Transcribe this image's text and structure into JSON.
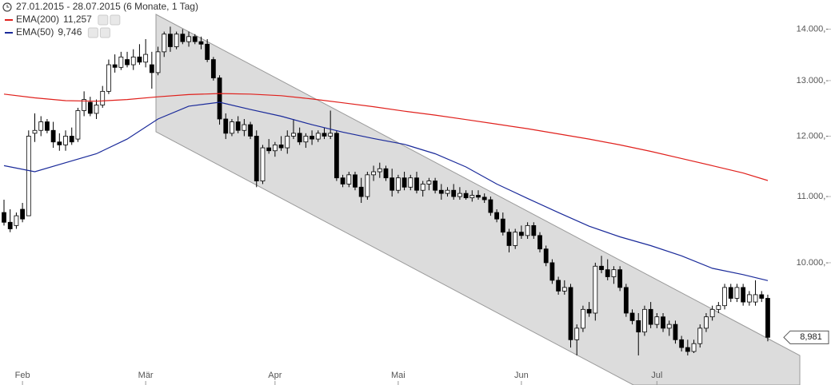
{
  "chart_data": {
    "type": "candlestick",
    "title": "27.01.2015 - 28.07.2015 (6 Monate, 1 Tag)",
    "log_scale": true,
    "grid": false,
    "ylim": [
      8600,
      14600
    ],
    "yticks": [
      {
        "value": 10000,
        "label": "10.000,-"
      },
      {
        "value": 11000,
        "label": "11.000,-"
      },
      {
        "value": 12000,
        "label": "12.000,-"
      },
      {
        "value": 13000,
        "label": "13.000,-"
      },
      {
        "value": 14000,
        "label": "14.000,-"
      }
    ],
    "xlim": [
      -0.65,
      129.2
    ],
    "xticks": [
      {
        "value": 3,
        "label": "Feb"
      },
      {
        "value": 23,
        "label": "Mär"
      },
      {
        "value": 44,
        "label": "Apr"
      },
      {
        "value": 64,
        "label": "Mai"
      },
      {
        "value": 84,
        "label": "Jun"
      },
      {
        "value": 106,
        "label": "Jul"
      }
    ],
    "up_color": "#ffffff",
    "down_color": "#000000",
    "open": [
      10750,
      10600,
      10550,
      10800,
      10700,
      12050,
      12100,
      12250,
      12100,
      11900,
      11850,
      12000,
      11950,
      12450,
      12600,
      12400,
      12550,
      12800,
      13300,
      13250,
      13400,
      13300,
      13450,
      13350,
      13300,
      13150,
      13550,
      13900,
      13650,
      13900,
      13750,
      13850,
      13750,
      13700,
      13400,
      13050,
      12300,
      12050,
      12250,
      12100,
      12200,
      12000,
      11250,
      11800,
      11750,
      11850,
      11800,
      12000,
      12050,
      11900,
      12000,
      11950,
      12050,
      12000,
      12050,
      11300,
      11200,
      11350,
      11150,
      11000,
      11350,
      11400,
      11450,
      11300,
      11100,
      11300,
      11150,
      11300,
      11100,
      11200,
      11250,
      11100,
      11050,
      11100,
      11000,
      11050,
      10980,
      11020,
      10990,
      10950,
      10750,
      10650,
      10450,
      10250,
      10450,
      10400,
      10550,
      10400,
      10200,
      10000,
      9750,
      9600,
      9650,
      8950,
      9100,
      9350,
      9300,
      9950,
      9900,
      9800,
      9900,
      9650,
      9300,
      9200,
      9050,
      9350,
      9150,
      9250,
      9100,
      9150,
      8950,
      8850,
      8800,
      8900,
      9100,
      9250,
      9350,
      9400,
      9650,
      9500,
      9650,
      9450,
      9450,
      9550,
      9500
    ],
    "high": [
      10950,
      10800,
      10750,
      10900,
      12100,
      12400,
      12350,
      12300,
      12250,
      12050,
      12100,
      12150,
      12500,
      12800,
      12700,
      12650,
      12900,
      13400,
      13500,
      13550,
      13550,
      13600,
      13700,
      13800,
      13550,
      13650,
      13950,
      14050,
      13950,
      14000,
      13950,
      13900,
      13850,
      13800,
      13450,
      13100,
      12400,
      12300,
      12350,
      12300,
      12250,
      12100,
      11850,
      11950,
      11900,
      12000,
      12100,
      12300,
      12150,
      12050,
      12100,
      12100,
      12150,
      12450,
      12100,
      11350,
      11400,
      11400,
      11300,
      11400,
      11500,
      11550,
      11500,
      11450,
      11350,
      11400,
      11350,
      11400,
      11250,
      11300,
      11300,
      11200,
      11150,
      11200,
      11150,
      11100,
      11100,
      11100,
      11050,
      11000,
      10800,
      10750,
      10500,
      10500,
      10550,
      10600,
      10600,
      10450,
      10250,
      10050,
      9800,
      9750,
      9700,
      9150,
      9400,
      9450,
      10000,
      10100,
      10050,
      9950,
      9950,
      9700,
      9350,
      9300,
      9400,
      9450,
      9300,
      9300,
      9200,
      9200,
      9000,
      8950,
      8950,
      9150,
      9300,
      9400,
      9450,
      9700,
      9700,
      9700,
      9700,
      9600,
      9750,
      9600,
      9550
    ],
    "low": [
      10550,
      10450,
      10500,
      10600,
      10700,
      11900,
      12000,
      12050,
      11800,
      11750,
      11750,
      11850,
      11900,
      12350,
      12350,
      12300,
      12500,
      12750,
      13150,
      13200,
      13250,
      13200,
      13300,
      13250,
      12850,
      13100,
      13450,
      13550,
      13600,
      13700,
      13650,
      13700,
      13600,
      13350,
      13000,
      12200,
      11950,
      12000,
      12050,
      12000,
      11950,
      11150,
      11200,
      11700,
      11650,
      11750,
      11700,
      11950,
      11850,
      11800,
      11850,
      11900,
      11950,
      11950,
      11250,
      11150,
      11150,
      11100,
      10900,
      10950,
      11250,
      11300,
      11250,
      11000,
      11050,
      11100,
      11100,
      11050,
      11000,
      11100,
      11050,
      10950,
      11000,
      10950,
      10950,
      10950,
      10920,
      10950,
      10900,
      10700,
      10600,
      10400,
      10150,
      10200,
      10350,
      10350,
      10350,
      10150,
      9950,
      9700,
      9550,
      9550,
      8850,
      8750,
      9050,
      9250,
      9200,
      9850,
      9750,
      9700,
      9600,
      9250,
      9150,
      8750,
      9000,
      9100,
      9100,
      9050,
      9000,
      8900,
      8800,
      8750,
      8780,
      8850,
      9050,
      9200,
      9300,
      9350,
      9450,
      9450,
      9400,
      9400,
      9400,
      9450,
      8930
    ],
    "close": [
      10600,
      10500,
      10700,
      10650,
      12000,
      12100,
      12250,
      12100,
      11900,
      11850,
      12000,
      11900,
      12450,
      12650,
      12400,
      12550,
      12800,
      13300,
      13250,
      13450,
      13300,
      13450,
      13350,
      13500,
      13150,
      13550,
      13900,
      13650,
      13900,
      13750,
      13850,
      13750,
      13700,
      13400,
      13050,
      12300,
      12050,
      12250,
      12100,
      12200,
      12000,
      11250,
      11800,
      11750,
      11850,
      11800,
      12000,
      12050,
      11900,
      12000,
      11950,
      12050,
      12000,
      12050,
      11300,
      11200,
      11350,
      11150,
      11000,
      11350,
      11400,
      11450,
      11300,
      11100,
      11300,
      11150,
      11300,
      11100,
      11200,
      11250,
      11100,
      11050,
      11100,
      11000,
      11050,
      10980,
      11020,
      10990,
      10950,
      10750,
      10650,
      10450,
      10250,
      10450,
      10400,
      10550,
      10400,
      10200,
      10000,
      9750,
      9600,
      9650,
      8950,
      9100,
      9350,
      9300,
      9950,
      9900,
      9800,
      9900,
      9650,
      9300,
      9200,
      9050,
      9350,
      9150,
      9250,
      9100,
      9150,
      8950,
      8850,
      8800,
      8900,
      9100,
      9250,
      9350,
      9400,
      9650,
      9500,
      9650,
      9450,
      9550,
      9550,
      9500,
      8981
    ],
    "close_label": "8,981",
    "series": [
      {
        "name": "EMA(200)",
        "color": "#e0201c",
        "value_label": "11,257",
        "x": [
          0,
          5,
          10,
          15,
          20,
          25,
          30,
          35,
          40,
          45,
          50,
          55,
          60,
          65,
          70,
          75,
          80,
          85,
          90,
          95,
          100,
          105,
          110,
          115,
          120,
          124
        ],
        "values": [
          12750,
          12680,
          12630,
          12620,
          12650,
          12700,
          12740,
          12760,
          12750,
          12720,
          12660,
          12590,
          12520,
          12440,
          12370,
          12290,
          12210,
          12130,
          12040,
          11950,
          11850,
          11740,
          11620,
          11500,
          11380,
          11257
        ]
      },
      {
        "name": "EMA(50)",
        "color": "#1a2a9a",
        "value_label": "9,746",
        "x": [
          0,
          5,
          10,
          15,
          20,
          25,
          30,
          35,
          40,
          45,
          50,
          55,
          60,
          65,
          70,
          75,
          80,
          85,
          90,
          95,
          100,
          105,
          110,
          115,
          120,
          124
        ],
        "values": [
          11500,
          11400,
          11550,
          11700,
          11950,
          12300,
          12530,
          12600,
          12470,
          12350,
          12200,
          12070,
          11960,
          11860,
          11700,
          11480,
          11200,
          10970,
          10750,
          10540,
          10380,
          10250,
          10100,
          9920,
          9830,
          9746
        ]
      }
    ]
  }
}
